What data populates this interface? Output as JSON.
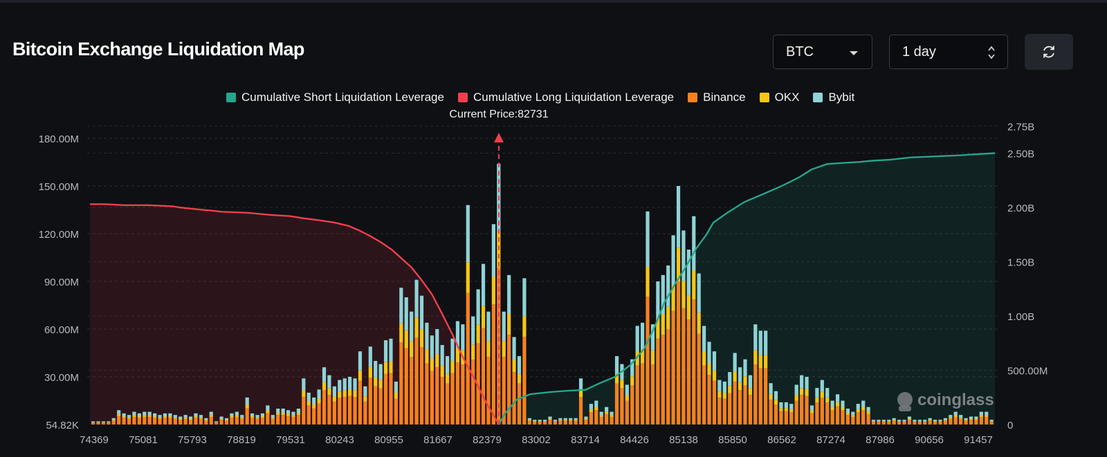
{
  "header": {
    "title": "Bitcoin Exchange Liquidation Map",
    "asset_value": "BTC",
    "range_value": "1 day"
  },
  "legend": [
    {
      "label": "Cumulative Short Liquidation Leverage",
      "color": "#26a58c"
    },
    {
      "label": "Cumulative Long Liquidation Leverage",
      "color": "#f0404b"
    },
    {
      "label": "Binance",
      "color": "#f7811e"
    },
    {
      "label": "OKX",
      "color": "#f7c513"
    },
    {
      "label": "Bybit",
      "color": "#8fd3d6"
    }
  ],
  "watermark": "coinglass",
  "chart_data": {
    "type": "bar",
    "current_price_label": "Current Price:82731",
    "current_price": 82731,
    "y_left_ticks": [
      "54.82K",
      "30.00M",
      "60.00M",
      "90.00M",
      "120.00M",
      "150.00M",
      "180.00M"
    ],
    "y_left_values": [
      54820,
      30000000,
      60000000,
      90000000,
      120000000,
      150000000,
      180000000
    ],
    "y_right_ticks": [
      "0",
      "500.00M",
      "1.00B",
      "1.50B",
      "2.00B",
      "2.50B",
      "2.75B"
    ],
    "y_right_values": [
      0,
      500000000,
      1000000000,
      1500000000,
      2000000000,
      2500000000,
      2750000000
    ],
    "x_ticks": [
      "74369",
      "75081",
      "75793",
      "78819",
      "79531",
      "80243",
      "80955",
      "81667",
      "82379",
      "83002",
      "83714",
      "84426",
      "85138",
      "85850",
      "86562",
      "87274",
      "87986",
      "90656",
      "91457"
    ],
    "colors": {
      "binance": "#f7811e",
      "okx": "#f7c513",
      "bybit": "#8fd3d6",
      "long": "#f0404b",
      "short": "#26a58c"
    },
    "bars_total_m": [
      2,
      2,
      2,
      2,
      4,
      9,
      7,
      6,
      8,
      7,
      8,
      8,
      7,
      6,
      7,
      7,
      6,
      5,
      6,
      5,
      7,
      6,
      4,
      8,
      2,
      5,
      4,
      7,
      8,
      6,
      17,
      7,
      6,
      7,
      12,
      6,
      10,
      10,
      9,
      8,
      10,
      29,
      20,
      17,
      22,
      36,
      31,
      24,
      28,
      29,
      30,
      29,
      46,
      24,
      49,
      40,
      38,
      53,
      54,
      27,
      86,
      80,
      71,
      91,
      81,
      64,
      56,
      60,
      50,
      43,
      54,
      65,
      63,
      138,
      68,
      85,
      101,
      71,
      126,
      164,
      71,
      94,
      55,
      43,
      92,
      4,
      3,
      3,
      3,
      5,
      3,
      4,
      4,
      4,
      4,
      29,
      5,
      13,
      15,
      8,
      11,
      8,
      43,
      38,
      25,
      41,
      62,
      64,
      134,
      63,
      90,
      94,
      100,
      119,
      150,
      122,
      110,
      131,
      95,
      62,
      52,
      46,
      28,
      27,
      33,
      45,
      36,
      41,
      31,
      63,
      59,
      59,
      26,
      21,
      14,
      14,
      13,
      25,
      31,
      30,
      12,
      23,
      28,
      23,
      15,
      19,
      15,
      10,
      8,
      13,
      15,
      11,
      3,
      3,
      3,
      3,
      4,
      3,
      3,
      5,
      3,
      3,
      3,
      4,
      3,
      3,
      4,
      6,
      8,
      6,
      4,
      5,
      5,
      8,
      8,
      3
    ],
    "long_cum_b": [
      2.03,
      2.03,
      2.02,
      2.02,
      2.01,
      2.0,
      1.99,
      1.98,
      1.97,
      1.96,
      1.95,
      1.93,
      1.92,
      1.9,
      1.88,
      1.86,
      1.83,
      1.79,
      1.74,
      1.68,
      1.61,
      1.53,
      1.45,
      1.34,
      1.2,
      1.03,
      0.84,
      0.63,
      0.44,
      0.22,
      0.0
    ],
    "long_price": [
      74369,
      74800,
      75100,
      75450,
      75800,
      76200,
      76800,
      77500,
      78200,
      78819,
      79200,
      79531,
      79800,
      80000,
      80243,
      80450,
      80650,
      80800,
      80955,
      81120,
      81280,
      81420,
      81560,
      81700,
      81860,
      82000,
      82150,
      82300,
      82450,
      82600,
      82731
    ],
    "short_cum_b": [
      0.0,
      0.1,
      0.23,
      0.28,
      0.3,
      0.31,
      0.32,
      0.38,
      0.44,
      0.55,
      0.7,
      0.9,
      1.12,
      1.3,
      1.45,
      1.62,
      1.75,
      1.86,
      1.95,
      2.05,
      2.12,
      2.2,
      2.28,
      2.35,
      2.4,
      2.42,
      2.43,
      2.44,
      2.46,
      2.48,
      2.5
    ],
    "short_price": [
      82731,
      82850,
      83002,
      83200,
      83500,
      83714,
      84000,
      84200,
      84426,
      84650,
      84850,
      85000,
      85138,
      85300,
      85450,
      85600,
      85750,
      85850,
      86050,
      86300,
      86562,
      86850,
      87100,
      87274,
      87500,
      87986,
      88600,
      89600,
      90656,
      91457,
      92000
    ]
  }
}
